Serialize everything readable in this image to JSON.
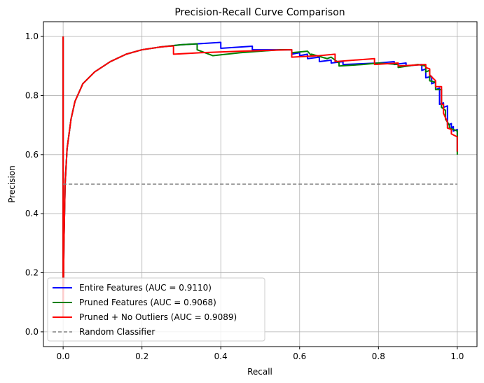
{
  "chart_data": {
    "type": "line",
    "title": "Precision-Recall Curve Comparison",
    "xlabel": "Recall",
    "ylabel": "Precision",
    "xlim": [
      -0.05,
      1.05
    ],
    "ylim": [
      -0.05,
      1.05
    ],
    "xticks": [
      0.0,
      0.2,
      0.4,
      0.6,
      0.8,
      1.0
    ],
    "xtick_labels": [
      "0.0",
      "0.2",
      "0.4",
      "0.6",
      "0.8",
      "1.0"
    ],
    "yticks": [
      0.0,
      0.2,
      0.4,
      0.6,
      0.8,
      1.0
    ],
    "ytick_labels": [
      "0.0",
      "0.2",
      "0.4",
      "0.6",
      "0.8",
      "1.0"
    ],
    "grid": true,
    "legend_position": "lower-left",
    "series": [
      {
        "name": "Entire Features (AUC = 0.9110)",
        "color": "#0000ff",
        "style": "solid",
        "x": [
          0,
          0,
          0.002,
          0.005,
          0.01,
          0.02,
          0.03,
          0.05,
          0.08,
          0.12,
          0.16,
          0.2,
          0.25,
          0.3,
          0.34,
          0.4,
          0.4,
          0.48,
          0.48,
          0.58,
          0.58,
          0.6,
          0.6,
          0.62,
          0.62,
          0.65,
          0.65,
          0.68,
          0.68,
          0.71,
          0.71,
          0.8,
          0.84,
          0.84,
          0.87,
          0.87,
          0.91,
          0.91,
          0.92,
          0.92,
          0.935,
          0.935,
          0.945,
          0.945,
          0.955,
          0.955,
          0.965,
          0.965,
          0.975,
          0.975,
          0.985,
          0.985,
          0.99,
          0.99,
          1.0,
          1.0
        ],
        "y": [
          1.0,
          0.05,
          0.3,
          0.5,
          0.62,
          0.72,
          0.78,
          0.84,
          0.88,
          0.915,
          0.94,
          0.955,
          0.965,
          0.972,
          0.975,
          0.98,
          0.96,
          0.967,
          0.955,
          0.955,
          0.94,
          0.945,
          0.935,
          0.94,
          0.925,
          0.93,
          0.915,
          0.92,
          0.91,
          0.915,
          0.905,
          0.91,
          0.915,
          0.905,
          0.91,
          0.9,
          0.905,
          0.885,
          0.89,
          0.86,
          0.865,
          0.84,
          0.845,
          0.82,
          0.825,
          0.77,
          0.775,
          0.76,
          0.765,
          0.7,
          0.705,
          0.69,
          0.695,
          0.68,
          0.685,
          0.61
        ]
      },
      {
        "name": "Pruned Features (AUC = 0.9068)",
        "color": "#008000",
        "style": "solid",
        "x": [
          0,
          0,
          0.002,
          0.005,
          0.01,
          0.02,
          0.03,
          0.05,
          0.08,
          0.12,
          0.16,
          0.2,
          0.25,
          0.3,
          0.34,
          0.34,
          0.38,
          0.45,
          0.55,
          0.58,
          0.58,
          0.62,
          0.63,
          0.63,
          0.67,
          0.68,
          0.7,
          0.7,
          0.76,
          0.8,
          0.85,
          0.85,
          0.9,
          0.92,
          0.92,
          0.93,
          0.93,
          0.945,
          0.945,
          0.96,
          0.96,
          0.97,
          0.97,
          0.98,
          0.98,
          1.0,
          1.0
        ],
        "y": [
          1.0,
          0.05,
          0.3,
          0.5,
          0.62,
          0.72,
          0.78,
          0.84,
          0.88,
          0.915,
          0.94,
          0.955,
          0.965,
          0.972,
          0.975,
          0.955,
          0.935,
          0.945,
          0.955,
          0.955,
          0.945,
          0.95,
          0.935,
          0.94,
          0.925,
          0.93,
          0.91,
          0.9,
          0.905,
          0.91,
          0.905,
          0.895,
          0.905,
          0.9,
          0.88,
          0.885,
          0.85,
          0.845,
          0.82,
          0.82,
          0.76,
          0.75,
          0.72,
          0.7,
          0.69,
          0.68,
          0.6
        ]
      },
      {
        "name": "Pruned + No Outliers (AUC = 0.9089)",
        "color": "#ff0000",
        "style": "solid",
        "x": [
          0,
          0,
          0.002,
          0.005,
          0.01,
          0.02,
          0.03,
          0.05,
          0.08,
          0.12,
          0.16,
          0.2,
          0.25,
          0.28,
          0.28,
          0.35,
          0.45,
          0.57,
          0.58,
          0.58,
          0.65,
          0.69,
          0.69,
          0.79,
          0.79,
          0.85,
          0.85,
          0.92,
          0.92,
          0.93,
          0.93,
          0.945,
          0.945,
          0.96,
          0.96,
          0.965,
          0.965,
          0.975,
          0.975,
          0.985,
          0.985,
          1.0,
          1.0
        ],
        "y": [
          1.0,
          0.05,
          0.3,
          0.5,
          0.62,
          0.72,
          0.78,
          0.84,
          0.88,
          0.915,
          0.94,
          0.955,
          0.965,
          0.968,
          0.94,
          0.945,
          0.95,
          0.955,
          0.955,
          0.93,
          0.935,
          0.94,
          0.915,
          0.925,
          0.905,
          0.91,
          0.9,
          0.905,
          0.895,
          0.89,
          0.87,
          0.85,
          0.83,
          0.83,
          0.77,
          0.77,
          0.74,
          0.71,
          0.69,
          0.685,
          0.67,
          0.66,
          0.61
        ]
      },
      {
        "name": "Random Classifier",
        "color": "#808080",
        "style": "dashed",
        "x": [
          0,
          1
        ],
        "y": [
          0.5,
          0.5
        ]
      }
    ]
  }
}
